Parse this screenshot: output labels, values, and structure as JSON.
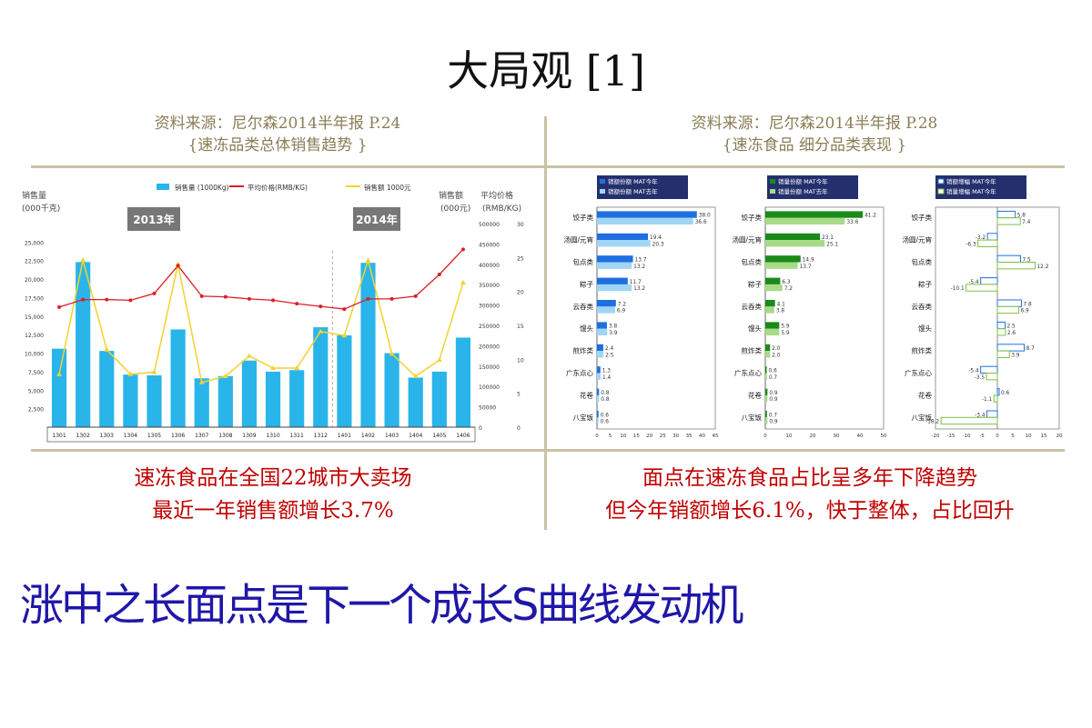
{
  "title": "大局观 [1]",
  "left": {
    "source_line1": "资料来源：尼尔森2014半年报 P.24",
    "source_line2": "{速冻品类总体销售趋势 }",
    "caption_line1": "速冻食品在全国22城市大卖场",
    "caption_line2": "最近一年销售额增长3.7%"
  },
  "right": {
    "source_line1": "资料来源：尼尔森2014半年报 P.28",
    "source_line2": "{速冻食品  细分品类表现 }",
    "caption_line1": "面点在速冻食品占比呈多年下降趋势",
    "caption_line2": "但今年销额增长6.1%，快于整体，占比回升"
  },
  "headline": "涨中之长面点是下一个成长S曲线发动机",
  "colors": {
    "accent": "#1f17a8",
    "caption": "#c00000",
    "bar": "#2ab5ea",
    "price_line": "#d92027",
    "sales_line": "#f2d22e",
    "blue": "#1f6fe0",
    "lightblue": "#9fd5f5",
    "green": "#1a8a1a",
    "lightgreen": "#a7db86"
  },
  "chart_data": [
    {
      "type": "bar",
      "legend": [
        "销售量 (1000Kg)",
        "平均价格(RMB/KG)",
        "销售额 1000元"
      ],
      "year_labels": [
        "2013年",
        "2014年"
      ],
      "ylabel_left": "销售量\n(000千克)",
      "ylabel_right1": "销售额\n(000元)",
      "ylabel_right2": "平均价格\n(RMB/KG)",
      "categories": [
        "1301",
        "1302",
        "1303",
        "1304",
        "1305",
        "1306",
        "1307",
        "1308",
        "1309",
        "1310",
        "1311",
        "1312",
        "1401",
        "1402",
        "1403",
        "1404",
        "1405",
        "1406"
      ],
      "left_ticks": [
        "2,500",
        "5,000",
        "7,500",
        "10,000",
        "12,500",
        "15,000",
        "17,500",
        "20,000",
        "22,500",
        "25,000"
      ],
      "right1_ticks": [
        "0",
        "50000",
        "100000",
        "150000",
        "200000",
        "250000",
        "300000",
        "350000",
        "400000",
        "450000",
        "500000"
      ],
      "right2_ticks": [
        "0",
        "5",
        "10",
        "15",
        "20",
        "25",
        "30"
      ],
      "series": [
        {
          "name": "销售量 (1000Kg)",
          "axis": "left",
          "values": [
            10600,
            22300,
            10300,
            7100,
            7000,
            13200,
            6600,
            6900,
            9000,
            7500,
            7700,
            13500,
            12400,
            22200,
            10000,
            6700,
            7500,
            12100
          ]
        },
        {
          "name": "平均价格(RMB/KG)",
          "axis": "right2",
          "values": [
            17.7,
            18.8,
            18.8,
            18.7,
            19.7,
            23.8,
            19.3,
            19.2,
            18.9,
            18.7,
            18.2,
            17.8,
            17.4,
            18.9,
            18.9,
            19.3,
            22.5,
            26.2
          ]
        },
        {
          "name": "销售额 1000元",
          "axis": "right1",
          "values": [
            130000,
            410000,
            190000,
            130000,
            135000,
            400000,
            110000,
            125000,
            175000,
            145000,
            145000,
            235000,
            225000,
            410000,
            180000,
            125000,
            165000,
            355000
          ]
        }
      ],
      "ylim_left": [
        0,
        27500
      ],
      "ylim_right1": [
        0,
        500000
      ],
      "ylim_right2": [
        0,
        30
      ]
    },
    {
      "type": "bar",
      "orientation": "horizontal",
      "legend": [
        "销额份额 MAT今年",
        "销额份额 MAT去年"
      ],
      "categories": [
        "饺子类",
        "汤圆/元宵",
        "包点类",
        "粽子",
        "云吞类",
        "馒头",
        "煎炸类",
        "广东点心",
        "花卷",
        "八宝饭"
      ],
      "series": [
        {
          "name": "销额份额 MAT今年",
          "values": [
            38.0,
            19.4,
            13.7,
            11.7,
            7.2,
            3.8,
            2.4,
            1.3,
            0.8,
            0.6
          ]
        },
        {
          "name": "销额份额 MAT去年",
          "values": [
            36.6,
            20.3,
            13.2,
            13.2,
            6.9,
            3.9,
            2.5,
            1.4,
            0.8,
            0.6
          ]
        }
      ],
      "xticks": [
        "0",
        "5",
        "10",
        "15",
        "20",
        "25",
        "30",
        "35",
        "40",
        "45"
      ],
      "xlim": [
        0,
        45
      ]
    },
    {
      "type": "bar",
      "orientation": "horizontal",
      "legend": [
        "销量份额 MAT今年",
        "销量份额 MAT去年"
      ],
      "categories": [
        "饺子类",
        "汤圆/元宵",
        "包点类",
        "粽子",
        "云吞类",
        "馒头",
        "煎炸类",
        "广东点心",
        "花卷",
        "八宝饭"
      ],
      "series": [
        {
          "name": "销量份额 MAT今年",
          "values": [
            41.2,
            23.1,
            14.9,
            6.3,
            4.1,
            5.9,
            2.0,
            0.6,
            0.9,
            0.7
          ]
        },
        {
          "name": "销量份额 MAT去年",
          "values": [
            33.6,
            25.1,
            13.7,
            7.2,
            3.8,
            5.9,
            2.0,
            0.7,
            0.9,
            0.9
          ]
        }
      ],
      "xticks": [
        "0",
        "10",
        "20",
        "30",
        "40",
        "50"
      ],
      "xlim": [
        0,
        50
      ]
    },
    {
      "type": "bar",
      "orientation": "horizontal",
      "legend": [
        "销额增幅 MAT今年",
        "销量增幅 MAT今年"
      ],
      "categories": [
        "饺子类",
        "汤圆/元宵",
        "包点类",
        "粽子",
        "云吞类",
        "馒头",
        "煎炸类",
        "广东点心",
        "花卷",
        "八宝饭"
      ],
      "series": [
        {
          "name": "销额增幅 MAT今年",
          "values": [
            5.8,
            -3.2,
            7.5,
            -5.4,
            7.8,
            2.5,
            8.7,
            -5.4,
            0.6,
            -3.4
          ]
        },
        {
          "name": "销量增幅 MAT今年",
          "values": [
            7.4,
            -6.3,
            12.2,
            -10.1,
            6.9,
            2.6,
            3.9,
            -3.5,
            -1.1,
            -18.2
          ]
        }
      ],
      "xticks": [
        "-20",
        "-15",
        "-10",
        "-5",
        "0",
        "5",
        "10",
        "15",
        "20"
      ],
      "xlim": [
        -20,
        20
      ]
    }
  ]
}
